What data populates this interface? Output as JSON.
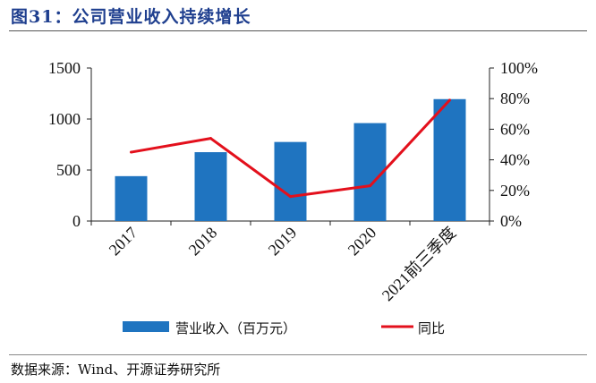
{
  "figure": {
    "title": "图31：公司营业收入持续增长",
    "source": "数据来源：Wind、开源证券研究所"
  },
  "colors": {
    "bar": "#1f74c0",
    "line": "#e3101c",
    "title": "#1f3f8f"
  },
  "chart_data": {
    "type": "bar",
    "categories": [
      "2017",
      "2018",
      "2019",
      "2020",
      "2021前三季度"
    ],
    "series": [
      {
        "name": "营业收入（百万元）",
        "type": "bar",
        "axis": "left",
        "values": [
          440,
          675,
          775,
          960,
          1195
        ]
      },
      {
        "name": "同比",
        "type": "line",
        "axis": "right",
        "values": [
          45,
          54,
          16,
          23,
          79
        ]
      }
    ],
    "y_left": {
      "ticks": [
        "0",
        "500",
        "1000",
        "1500"
      ],
      "range": [
        0,
        1500
      ]
    },
    "y_right": {
      "ticks": [
        "0%",
        "20%",
        "40%",
        "60%",
        "80%",
        "100%"
      ],
      "range": [
        0,
        100
      ]
    },
    "grid": false,
    "legend": "bottom"
  }
}
